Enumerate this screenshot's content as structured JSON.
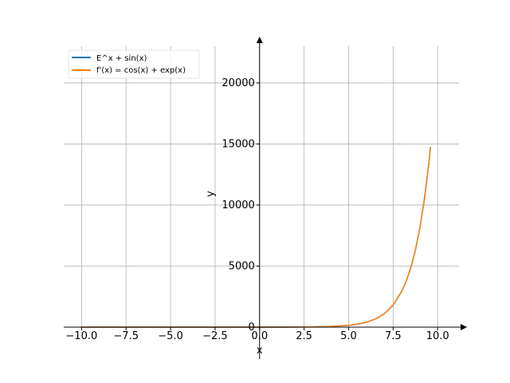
{
  "chart_data": {
    "type": "line",
    "xlabel": "x",
    "ylabel": "y",
    "xlim": [
      -11,
      11.2
    ],
    "ylim": [
      0,
      23000
    ],
    "x_ticks": [
      -10.0,
      -7.5,
      -5.0,
      -2.5,
      0.0,
      2.5,
      5.0,
      7.5,
      10.0
    ],
    "x_tick_labels": [
      "−10.0",
      "−7.5",
      "−5.0",
      "−2.5",
      "0.0",
      "2.5",
      "5.0",
      "7.5",
      "10.0"
    ],
    "y_ticks": [
      0,
      5000,
      10000,
      15000,
      20000
    ],
    "y_tick_labels": [
      "0",
      "5000",
      "10000",
      "15000",
      "20000"
    ],
    "grid": true,
    "legend_position": "top-left",
    "series": [
      {
        "name": "E^x + sin(x)",
        "color": "#1f77b4",
        "x": [
          -10,
          -9,
          -8,
          -7,
          -6,
          -5,
          -4,
          -3,
          -2,
          -1,
          0,
          1,
          2,
          3,
          4,
          5,
          5.5,
          6,
          6.5,
          7,
          7.5,
          8,
          8.25,
          8.5,
          8.75,
          9,
          9.25,
          9.5,
          9.6
        ],
        "y": [
          0.54,
          -0.41,
          -0.99,
          -0.66,
          0.28,
          0.97,
          0.78,
          -0.09,
          -0.77,
          -0.47,
          1,
          3.56,
          9.3,
          20.23,
          53.84,
          147.45,
          243.99,
          403.15,
          665.36,
          1097.29,
          1809.04,
          2981.95,
          3828.1,
          4915.57,
          6311.21,
          8103.5,
          10403.93,
          13359.65,
          14764.64
        ]
      },
      {
        "name": "f'(x) = cos(x) + exp(x)",
        "color": "#ff7f0e",
        "x": [
          -10,
          -9,
          -8,
          -7,
          -6,
          -5,
          -4,
          -3,
          -2,
          -1,
          0,
          1,
          2,
          3,
          4,
          5,
          5.5,
          6,
          6.5,
          7,
          7.5,
          8,
          8.25,
          8.5,
          8.75,
          9,
          9.25,
          9.5,
          9.6
        ],
        "y": [
          -0.84,
          -0.91,
          -0.14,
          0.75,
          0.96,
          0.29,
          -0.64,
          -0.94,
          -0.28,
          0.91,
          2,
          3.26,
          6.97,
          19.1,
          53.94,
          148.7,
          245.4,
          404.39,
          666.12,
          1097.39,
          1808.39,
          2980.81,
          3826.85,
          4914.67,
          6310.91,
          8102.17,
          10401.78,
          13357.64,
          14762.78
        ]
      }
    ]
  }
}
